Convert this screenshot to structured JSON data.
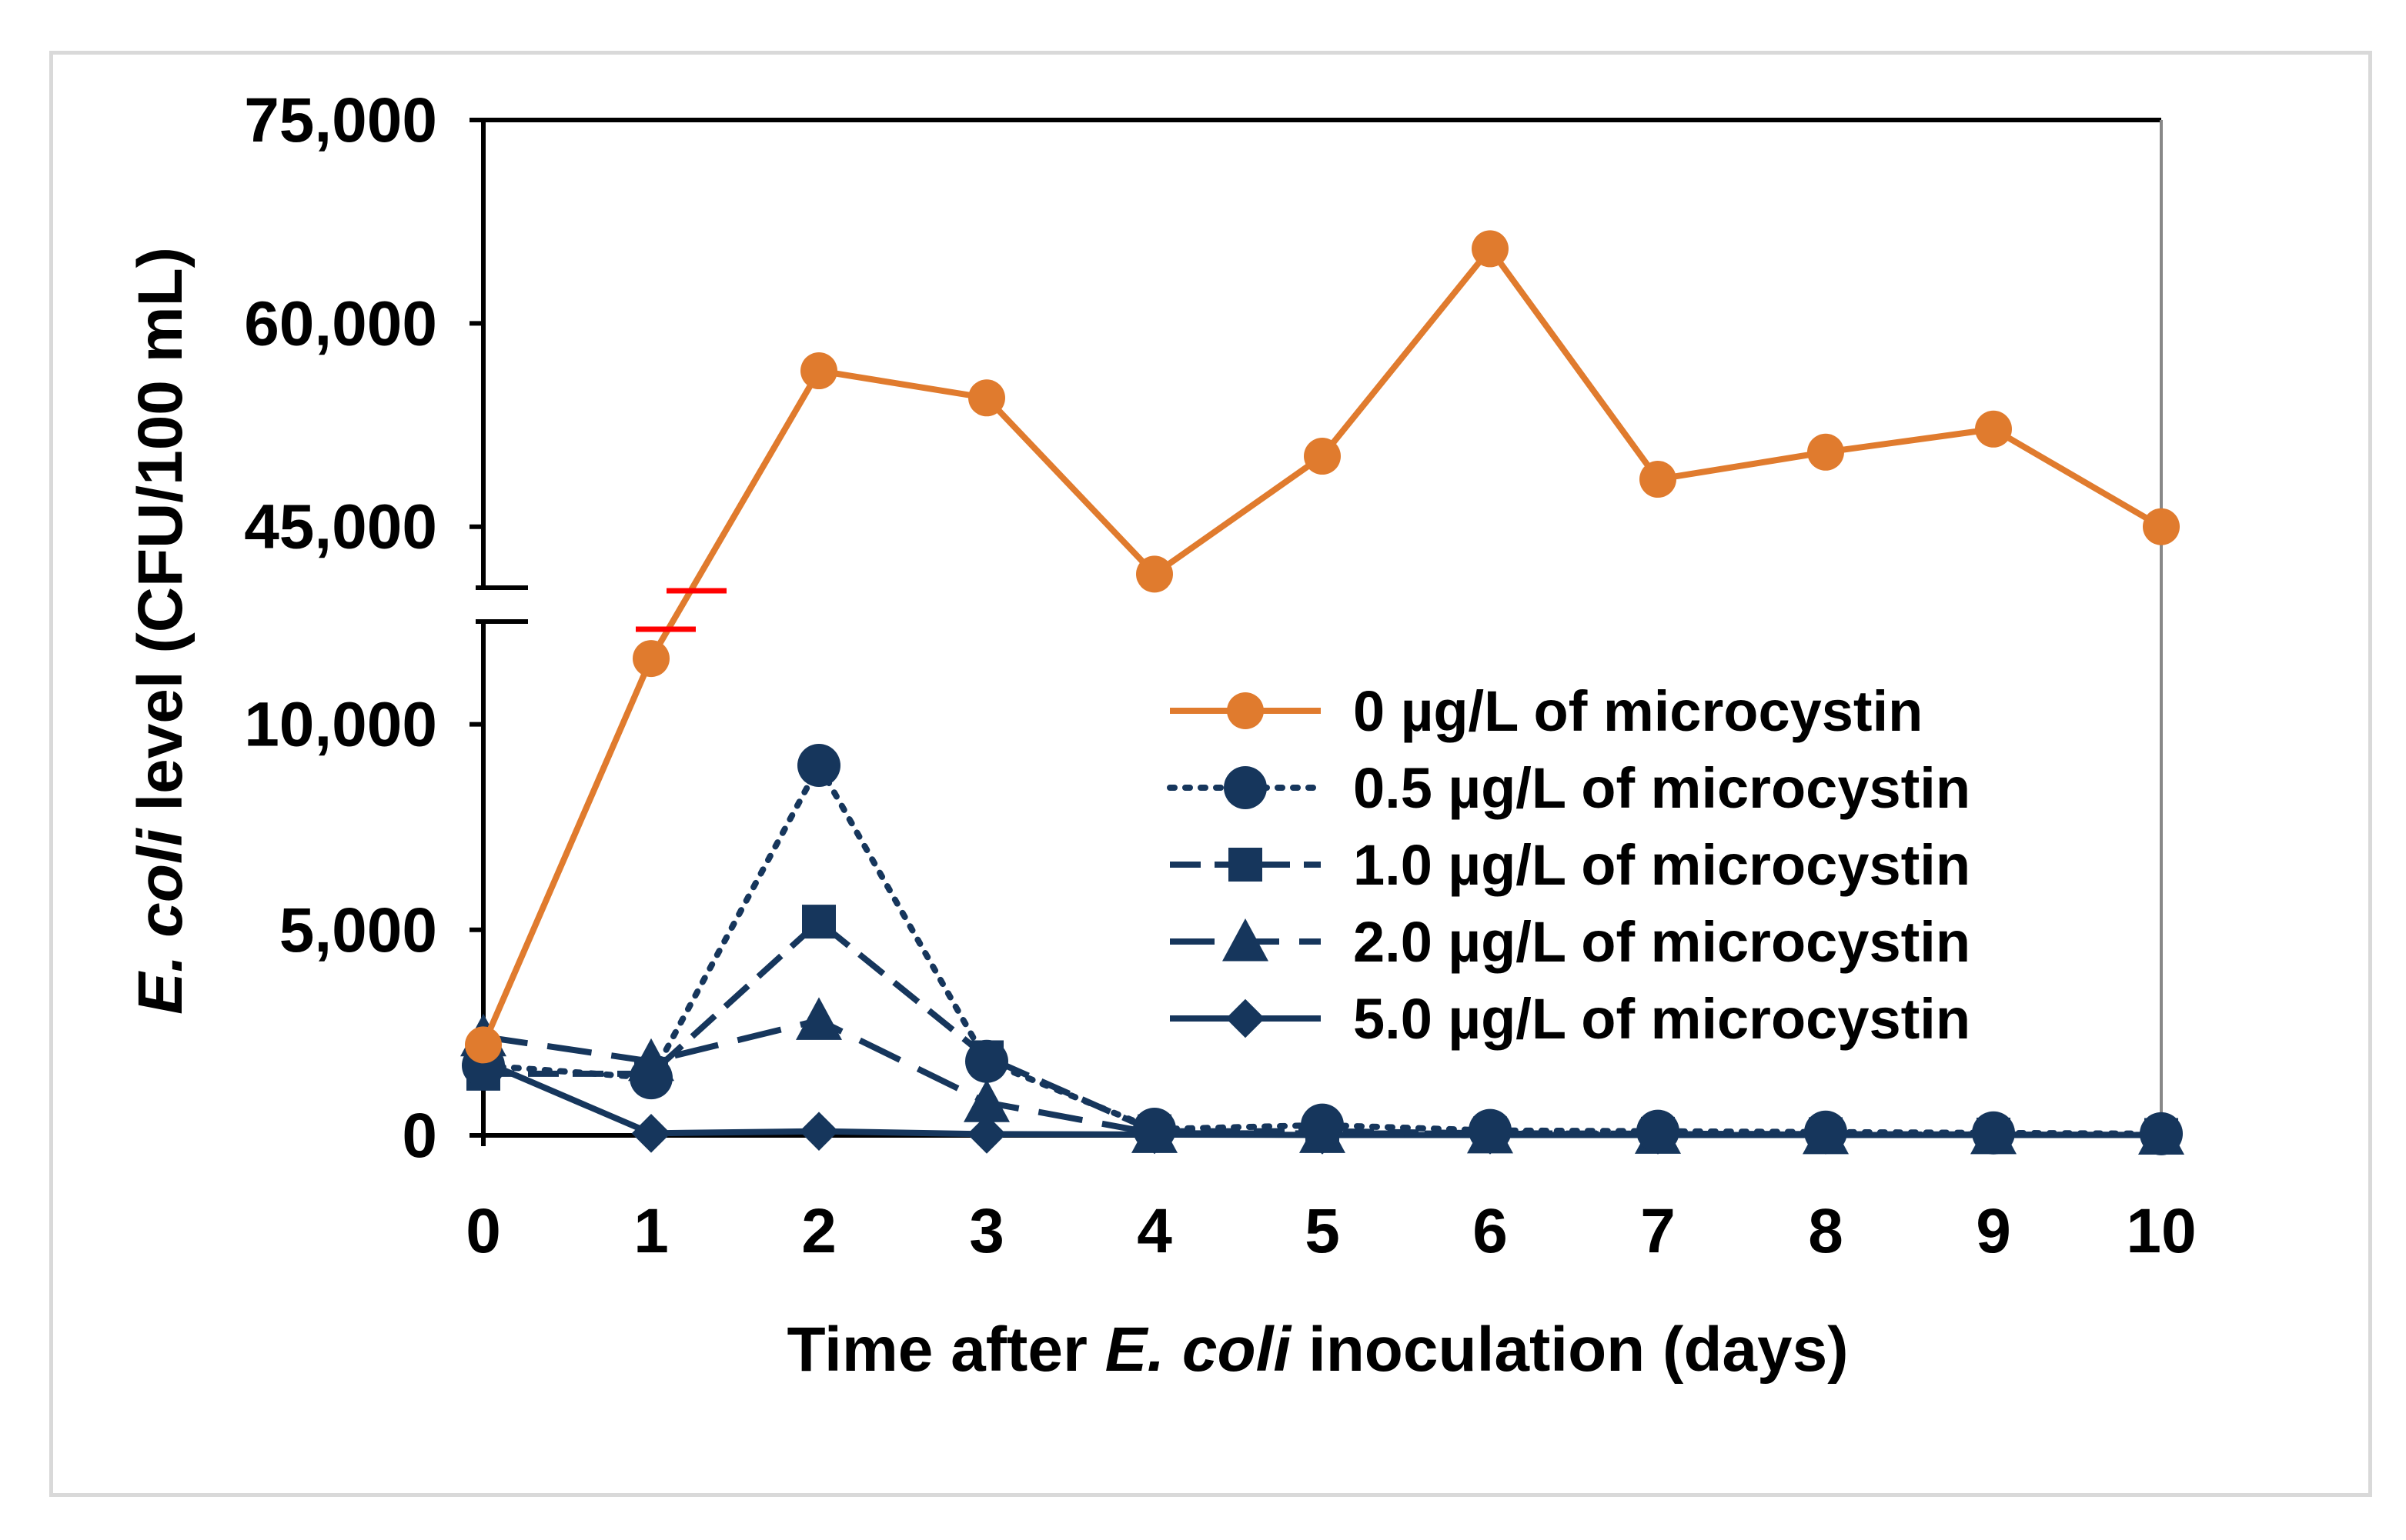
{
  "chart_data": {
    "type": "line",
    "title": "",
    "xlabel_parts": [
      "Time after ",
      "E. coli",
      " inoculation (days)"
    ],
    "ylabel_parts": [
      "E. coli",
      " level (CFU/100 mL)"
    ],
    "x": [
      0,
      1,
      2,
      3,
      4,
      5,
      6,
      7,
      8,
      9,
      10
    ],
    "x_ticks": [
      "0",
      "1",
      "2",
      "3",
      "4",
      "5",
      "6",
      "7",
      "8",
      "9",
      "10"
    ],
    "xlim": [
      0,
      10
    ],
    "y_axis_break": {
      "lower_range": [
        0,
        12500
      ],
      "upper_range": [
        40500,
        75000
      ]
    },
    "y_ticks": [
      {
        "value": 0,
        "label": "0"
      },
      {
        "value": 5000,
        "label": "5,000"
      },
      {
        "value": 10000,
        "label": "10,000"
      },
      {
        "value": 45000,
        "label": "45,000"
      },
      {
        "value": 60000,
        "label": "60,000"
      },
      {
        "value": 75000,
        "label": "75,000"
      }
    ],
    "series": [
      {
        "name": "0 µg/L of microcystin",
        "color": "#e07b2e",
        "dash": "solid",
        "marker": "circle",
        "values": [
          2200,
          11600,
          56500,
          54500,
          41500,
          50200,
          65500,
          48500,
          50500,
          52200,
          45000
        ]
      },
      {
        "name": "0.5 µg/L of microcystin",
        "color": "#16365c",
        "dash": "dotted",
        "marker": "circle",
        "values": [
          1700,
          1400,
          9000,
          1800,
          150,
          250,
          120,
          100,
          80,
          60,
          40
        ]
      },
      {
        "name": "1.0 µg/L of microcystin",
        "color": "#16365c",
        "dash": "dashed",
        "marker": "square",
        "values": [
          1500,
          1500,
          5200,
          1900,
          100,
          100,
          50,
          40,
          30,
          20,
          10
        ]
      },
      {
        "name": "2.0 µg/L of microcystin",
        "color": "#16365c",
        "dash": "longdash",
        "marker": "triangle",
        "values": [
          2400,
          1800,
          2800,
          800,
          50,
          50,
          40,
          30,
          20,
          20,
          10
        ]
      },
      {
        "name": "5.0 µg/L of microcystin",
        "color": "#16365c",
        "dash": "solid",
        "marker": "diamond",
        "values": [
          1800,
          50,
          100,
          30,
          20,
          10,
          10,
          10,
          10,
          10,
          10
        ]
      }
    ],
    "legend_position": "right-middle",
    "grid": false
  }
}
